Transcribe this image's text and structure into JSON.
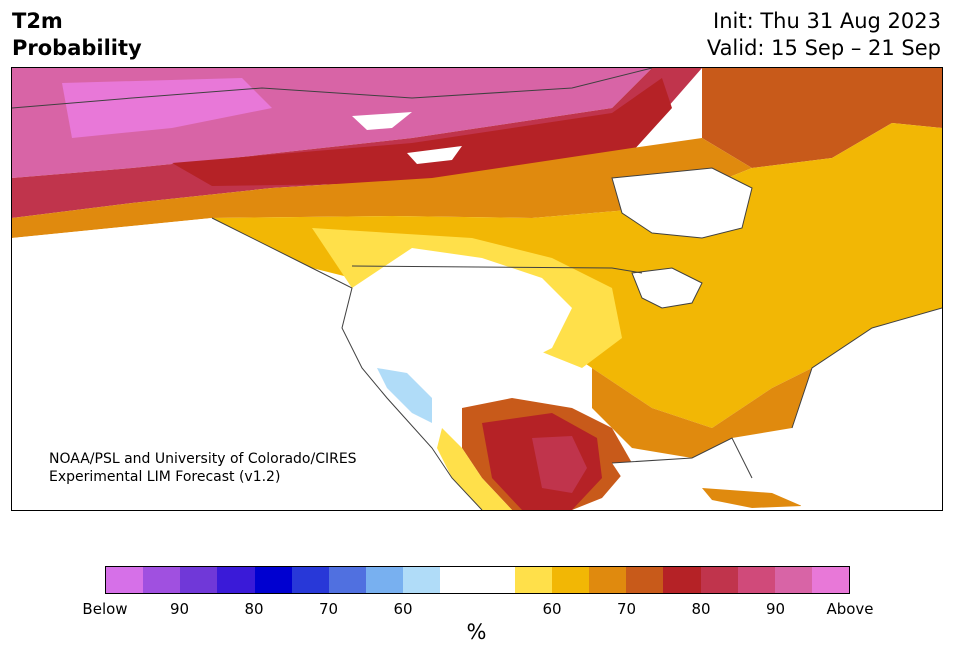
{
  "header": {
    "title_line1": "T2m",
    "title_line2": "Probability",
    "init_line": "Init: Thu 31 Aug 2023",
    "valid_line": "Valid: 15 Sep – 21 Sep"
  },
  "map": {
    "credit_line1": "NOAA/PSL and University of Colorado/CIRES",
    "credit_line2": "Experimental LIM Forecast (v1.2)"
  },
  "colorbar": {
    "unit_label": "%",
    "tick_labels": [
      "Below",
      "90",
      "80",
      "70",
      "60",
      "60",
      "70",
      "80",
      "90",
      "Above"
    ],
    "colors": [
      "#d670e8",
      "#a050e0",
      "#7038d8",
      "#3a1ad8",
      "#0000d0",
      "#2838d8",
      "#5070e0",
      "#78b0f0",
      "#b0dcf8",
      "#ffffff",
      "#ffffff",
      "#ffe04a",
      "#f2b705",
      "#e08a0e",
      "#c85a1a",
      "#b52226",
      "#c0344c",
      "#d04a7a",
      "#d864a6",
      "#e878d8"
    ]
  },
  "legend_colors": {
    "ocean": "#ffffff",
    "border": "#404040"
  }
}
